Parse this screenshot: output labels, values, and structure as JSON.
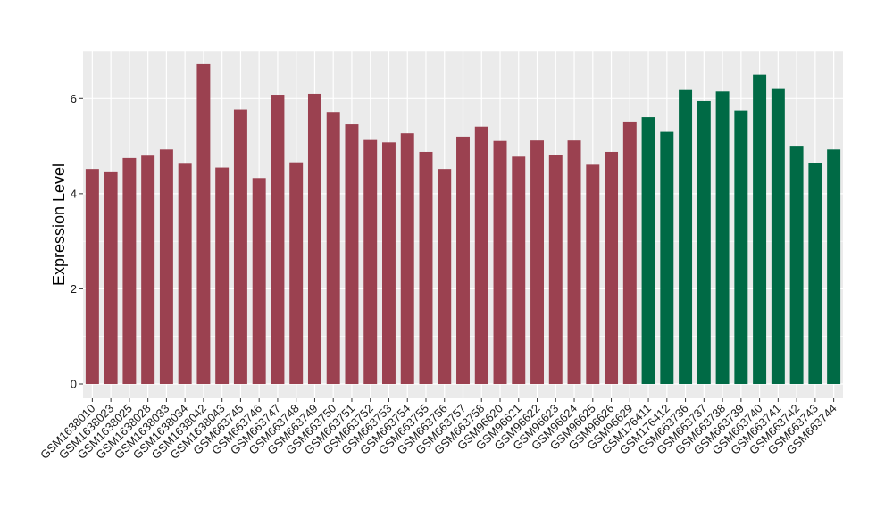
{
  "chart_data": {
    "type": "bar",
    "title": "",
    "xlabel": "",
    "ylabel": "Expression Level",
    "ylim": [
      -0.3,
      7.0
    ],
    "yticks": [
      0,
      2,
      4,
      6
    ],
    "grid": true,
    "legend": "none",
    "panel_background": "#ebebeb",
    "gridline_color": "#ffffff",
    "categories": [
      "GSM1638010",
      "GSM1638023",
      "GSM1638025",
      "GSM1638028",
      "GSM1638033",
      "GSM1638034",
      "GSM1638042",
      "GSM1638043",
      "GSM663745",
      "GSM663746",
      "GSM663747",
      "GSM663748",
      "GSM663749",
      "GSM663750",
      "GSM663751",
      "GSM663752",
      "GSM663753",
      "GSM663754",
      "GSM663755",
      "GSM663756",
      "GSM663757",
      "GSM663758",
      "GSM96620",
      "GSM96621",
      "GSM96622",
      "GSM96623",
      "GSM96624",
      "GSM96625",
      "GSM96626",
      "GSM96629",
      "GSM176411",
      "GSM176412",
      "GSM663736",
      "GSM663737",
      "GSM663738",
      "GSM663739",
      "GSM663740",
      "GSM663741",
      "GSM663742",
      "GSM663743",
      "GSM663744"
    ],
    "values": [
      4.52,
      4.45,
      4.75,
      4.8,
      4.93,
      4.63,
      6.72,
      4.55,
      5.77,
      4.33,
      6.08,
      4.66,
      6.1,
      5.72,
      5.46,
      5.13,
      5.08,
      5.27,
      4.88,
      4.52,
      5.2,
      5.41,
      5.11,
      4.78,
      5.12,
      4.82,
      5.12,
      4.61,
      4.88,
      5.5,
      5.61,
      5.3,
      6.18,
      5.95,
      6.15,
      5.75,
      6.5,
      6.2,
      4.99,
      4.65,
      4.93
    ],
    "bar_colors": [
      "#9b4150",
      "#9b4150",
      "#9b4150",
      "#9b4150",
      "#9b4150",
      "#9b4150",
      "#9b4150",
      "#9b4150",
      "#9b4150",
      "#9b4150",
      "#9b4150",
      "#9b4150",
      "#9b4150",
      "#9b4150",
      "#9b4150",
      "#9b4150",
      "#9b4150",
      "#9b4150",
      "#9b4150",
      "#9b4150",
      "#9b4150",
      "#9b4150",
      "#9b4150",
      "#9b4150",
      "#9b4150",
      "#9b4150",
      "#9b4150",
      "#9b4150",
      "#9b4150",
      "#9b4150",
      "#006a45",
      "#006a45",
      "#006a45",
      "#006a45",
      "#006a45",
      "#006a45",
      "#006a45",
      "#006a45",
      "#006a45",
      "#006a45",
      "#006a45"
    ]
  }
}
